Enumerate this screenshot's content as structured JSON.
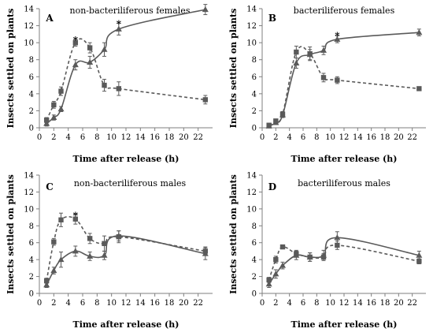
{
  "colors": {
    "series": "#5a5a5a",
    "axis": "#7f7f7f"
  },
  "chart_data": [
    {
      "type": "line",
      "panel": "A",
      "title": "non-bacteriliferous females",
      "xlabel": "Time after release (h)",
      "ylabel": "Insects settled on plants",
      "xlim": [
        0,
        24
      ],
      "ylim": [
        0,
        14
      ],
      "xticks": [
        0,
        2,
        4,
        6,
        8,
        10,
        12,
        14,
        16,
        18,
        20,
        22
      ],
      "yticks": [
        0,
        2,
        4,
        6,
        8,
        10,
        12,
        14
      ],
      "grid": false,
      "legend": "none",
      "series": [
        {
          "marker": "triangle",
          "line": "solid",
          "x": [
            1,
            2,
            3,
            5,
            7,
            9,
            11,
            23
          ],
          "y": [
            0.5,
            1.2,
            2.2,
            7.4,
            7.7,
            9.2,
            11.6,
            13.9
          ],
          "err": [
            0.3,
            0.3,
            0.3,
            0.6,
            0.7,
            0.8,
            0.7,
            0.6
          ]
        },
        {
          "marker": "square",
          "line": "dashed",
          "x": [
            1,
            2,
            3,
            5,
            7,
            9,
            11,
            23
          ],
          "y": [
            0.9,
            2.7,
            4.3,
            10.0,
            9.4,
            5.0,
            4.6,
            3.3
          ],
          "err": [
            0.3,
            0.4,
            0.5,
            0.4,
            0.6,
            0.7,
            0.8,
            0.5
          ]
        }
      ],
      "annotations": [
        {
          "text": "*",
          "x": 5,
          "y": 10.5
        },
        {
          "text": "*",
          "x": 11,
          "y": 12.4
        }
      ]
    },
    {
      "type": "line",
      "panel": "B",
      "title": "bacteriliferous females",
      "xlabel": "Time after release (h)",
      "ylabel": "Insects settled on plants",
      "xlim": [
        0,
        24
      ],
      "ylim": [
        0,
        14
      ],
      "xticks": [
        0,
        2,
        4,
        6,
        8,
        10,
        12,
        14,
        16,
        18,
        20,
        22
      ],
      "yticks": [
        0,
        2,
        4,
        6,
        8,
        10,
        12,
        14
      ],
      "grid": false,
      "legend": "none",
      "series": [
        {
          "marker": "triangle",
          "line": "solid",
          "x": [
            1,
            2,
            3,
            5,
            7,
            9,
            11,
            23
          ],
          "y": [
            0.2,
            0.6,
            1.5,
            7.6,
            8.6,
            9.1,
            10.4,
            11.2
          ],
          "err": [
            0.1,
            0.2,
            0.3,
            0.6,
            0.6,
            0.5,
            0.4,
            0.4
          ]
        },
        {
          "marker": "square",
          "line": "dashed",
          "x": [
            1,
            2,
            3,
            5,
            7,
            9,
            11,
            23
          ],
          "y": [
            0.3,
            0.8,
            1.6,
            8.9,
            8.7,
            5.9,
            5.6,
            4.6
          ],
          "err": [
            0.1,
            0.2,
            0.3,
            0.7,
            0.8,
            0.5,
            0.4,
            0.2
          ]
        }
      ],
      "annotations": [
        {
          "text": "*",
          "x": 11,
          "y": 11.0
        }
      ]
    },
    {
      "type": "line",
      "panel": "C",
      "title": "non-bacteriliferous males",
      "xlabel": "Time after release (h)",
      "ylabel": "Insects settled on plants",
      "xlim": [
        0,
        24
      ],
      "ylim": [
        0,
        14
      ],
      "xticks": [
        0,
        2,
        4,
        6,
        8,
        10,
        12,
        14,
        16,
        18,
        20,
        22
      ],
      "yticks": [
        0,
        2,
        4,
        6,
        8,
        10,
        12,
        14
      ],
      "grid": false,
      "legend": "none",
      "series": [
        {
          "marker": "triangle",
          "line": "solid",
          "x": [
            1,
            2,
            3,
            5,
            7,
            9,
            11,
            23
          ],
          "y": [
            1.0,
            2.7,
            4.0,
            5.0,
            4.4,
            4.5,
            6.8,
            4.7
          ],
          "err": [
            0.3,
            0.4,
            0.9,
            0.6,
            0.5,
            0.5,
            0.6,
            0.7
          ]
        },
        {
          "marker": "square",
          "line": "dashed",
          "x": [
            1,
            2,
            3,
            5,
            7,
            9,
            11,
            23
          ],
          "y": [
            1.5,
            6.1,
            8.7,
            8.8,
            6.5,
            5.9,
            6.7,
            5.0
          ],
          "err": [
            0.3,
            0.4,
            0.8,
            0.6,
            0.6,
            0.9,
            0.7,
            0.5
          ]
        }
      ],
      "annotations": [
        {
          "text": "*",
          "x": 5,
          "y": 9.4
        }
      ]
    },
    {
      "type": "line",
      "panel": "D",
      "title": "bacteriliferous males",
      "xlabel": "Time after release (h)",
      "ylabel": "Insects settled on plants",
      "xlim": [
        0,
        24
      ],
      "ylim": [
        0,
        14
      ],
      "xticks": [
        0,
        2,
        4,
        6,
        8,
        10,
        12,
        14,
        16,
        18,
        20,
        22
      ],
      "yticks": [
        0,
        2,
        4,
        6,
        8,
        10,
        12,
        14
      ],
      "grid": false,
      "legend": "none",
      "series": [
        {
          "marker": "triangle",
          "line": "solid",
          "x": [
            1,
            2,
            3,
            5,
            7,
            9,
            11,
            23
          ],
          "y": [
            1.1,
            2.3,
            3.3,
            4.5,
            4.3,
            4.5,
            6.6,
            4.5
          ],
          "err": [
            0.4,
            0.5,
            0.4,
            0.5,
            0.5,
            0.6,
            0.7,
            0.5
          ]
        },
        {
          "marker": "square",
          "line": "dashed",
          "x": [
            1,
            2,
            3,
            5,
            7,
            9,
            11,
            23
          ],
          "y": [
            1.6,
            4.0,
            5.5,
            4.7,
            4.3,
            4.3,
            5.7,
            3.8
          ],
          "err": [
            0.3,
            0.4,
            0.2,
            0.4,
            0.5,
            0.4,
            0.5,
            0.3
          ]
        }
      ],
      "annotations": []
    }
  ]
}
